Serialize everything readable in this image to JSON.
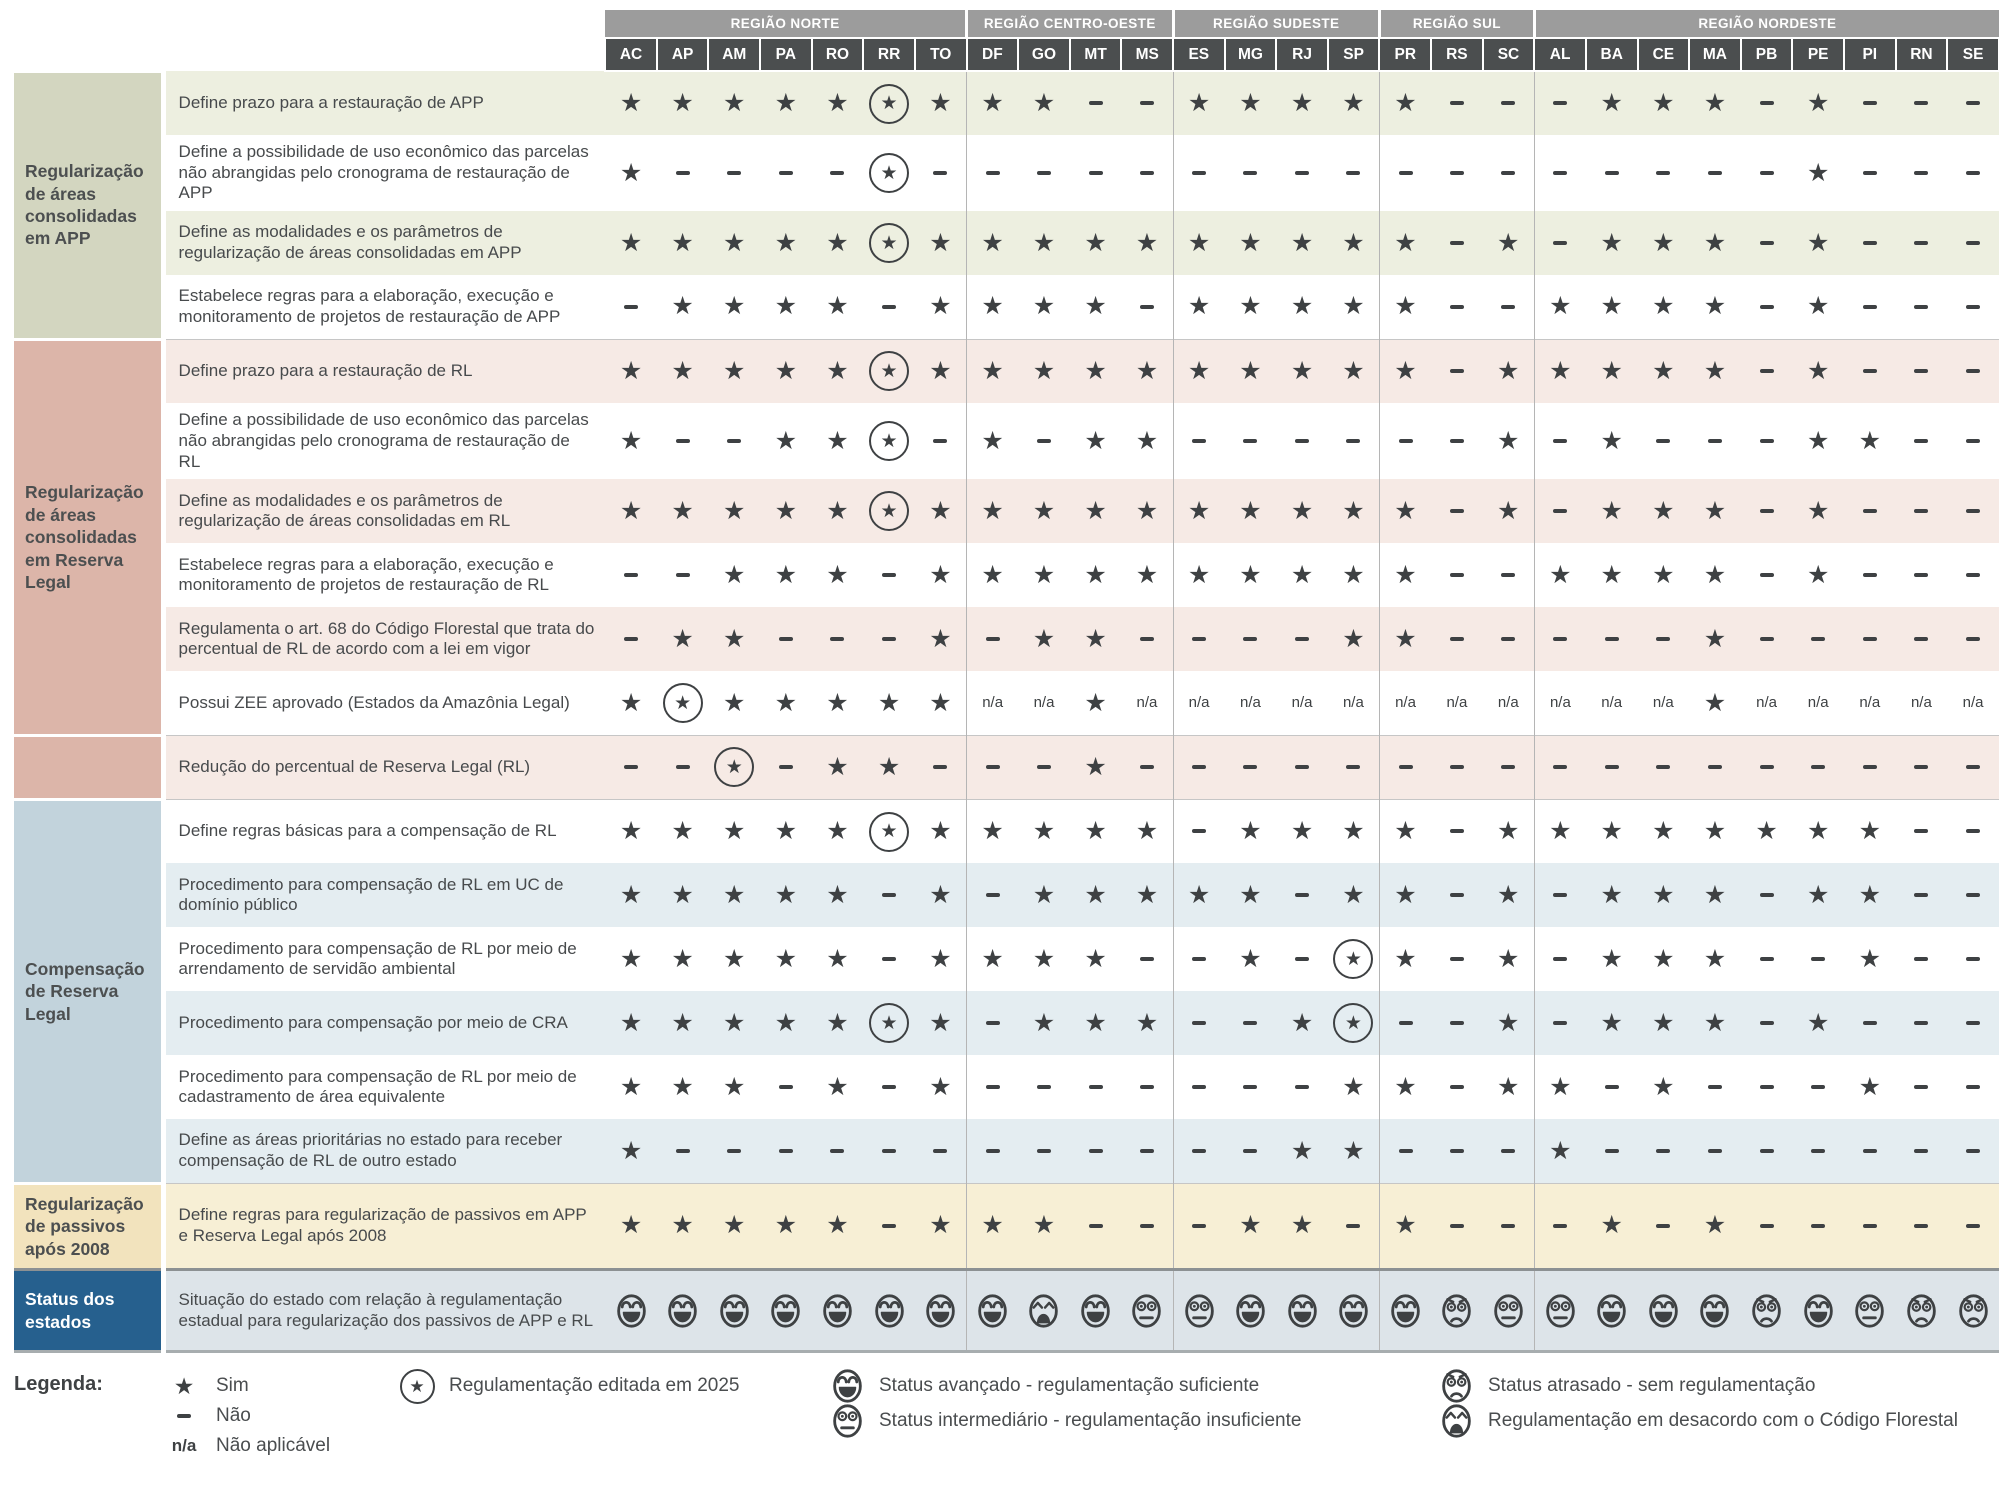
{
  "legend": {
    "title": "Legenda:",
    "items": [
      {
        "symbol": "S",
        "label": "Sim"
      },
      {
        "symbol": "N",
        "label": "Não"
      },
      {
        "symbol": "na",
        "label": "Não aplicável"
      },
      {
        "symbol": "E",
        "label": "Regulamentação editada em 2025"
      },
      {
        "symbol": "adv",
        "label": "Status avançado - regulamentação suficiente"
      },
      {
        "symbol": "int",
        "label": "Status intermediário - regulamentação insuficiente"
      },
      {
        "symbol": "atr",
        "label": "Status atrasado - sem regulamentação"
      },
      {
        "symbol": "des",
        "label": "Regulamentação em desacordo com o Código Florestal"
      }
    ]
  },
  "chart_data": {
    "type": "table",
    "symbol_meanings": {
      "S": "Sim",
      "N": "Não",
      "na": "Não aplicável",
      "E": "Regulamentação editada em 2025",
      "adv": "Status avançado - regulamentação suficiente",
      "int": "Status intermediário - regulamentação insuficiente",
      "atr": "Status atrasado - sem regulamentação",
      "des": "Regulamentação em desacordo com o Código Florestal"
    },
    "colors": {
      "region_header_bg": "#9c9c9c",
      "state_header_bg": "#4b4e4f",
      "symbol_color": "#3e4143",
      "navy": "#26608e"
    },
    "regions": [
      {
        "name": "REGIÃO NORTE",
        "states": [
          "AC",
          "AP",
          "AM",
          "PA",
          "RO",
          "RR",
          "TO"
        ]
      },
      {
        "name": "REGIÃO CENTRO-OESTE",
        "states": [
          "DF",
          "GO",
          "MT",
          "MS"
        ]
      },
      {
        "name": "REGIÃO SUDESTE",
        "states": [
          "ES",
          "MG",
          "RJ",
          "SP"
        ]
      },
      {
        "name": "REGIÃO SUL",
        "states": [
          "PR",
          "RS",
          "SC"
        ]
      },
      {
        "name": "REGIÃO NORDESTE",
        "states": [
          "AL",
          "BA",
          "CE",
          "MA",
          "PB",
          "PE",
          "PI",
          "RN",
          "SE"
        ]
      }
    ],
    "row_groups": [
      {
        "label": "Regularização de áreas consolidadas em APP",
        "label_bg": "#d3d6c0",
        "stripe": "#edefe0",
        "stripe_first": true,
        "rows": [
          {
            "label": "Define prazo para a restauração de APP",
            "values": [
              "S",
              "S",
              "S",
              "S",
              "S",
              "E",
              "S",
              "S",
              "S",
              "N",
              "N",
              "S",
              "S",
              "S",
              "S",
              "S",
              "N",
              "N",
              "N",
              "S",
              "S",
              "S",
              "N",
              "S",
              "N",
              "N",
              "N"
            ]
          },
          {
            "label": "Define a possibilidade de uso econômico das parcelas não abrangidas pelo cronograma de restauração de APP",
            "values": [
              "S",
              "N",
              "N",
              "N",
              "N",
              "E",
              "N",
              "N",
              "N",
              "N",
              "N",
              "N",
              "N",
              "N",
              "N",
              "N",
              "N",
              "N",
              "N",
              "N",
              "N",
              "N",
              "N",
              "S",
              "N",
              "N",
              "N"
            ]
          },
          {
            "label": "Define as modalidades e os parâmetros de regularização de áreas consolidadas em APP",
            "values": [
              "S",
              "S",
              "S",
              "S",
              "S",
              "E",
              "S",
              "S",
              "S",
              "S",
              "S",
              "S",
              "S",
              "S",
              "S",
              "S",
              "N",
              "S",
              "N",
              "S",
              "S",
              "S",
              "N",
              "S",
              "N",
              "N",
              "N"
            ]
          },
          {
            "label": "Estabelece regras para a elaboração, execução e monitoramento de projetos de restauração de APP",
            "values": [
              "N",
              "S",
              "S",
              "S",
              "S",
              "N",
              "S",
              "S",
              "S",
              "S",
              "N",
              "S",
              "S",
              "S",
              "S",
              "S",
              "N",
              "N",
              "S",
              "S",
              "S",
              "S",
              "N",
              "S",
              "N",
              "N",
              "N"
            ]
          }
        ]
      },
      {
        "label": "Regularização de áreas consolidadas em Reserva Legal",
        "label_bg": "#dcb5a9",
        "stripe": "#f6eae5",
        "stripe_first": true,
        "rows": [
          {
            "label": "Define prazo para a restauração de RL",
            "values": [
              "S",
              "S",
              "S",
              "S",
              "S",
              "E",
              "S",
              "S",
              "S",
              "S",
              "S",
              "S",
              "S",
              "S",
              "S",
              "S",
              "N",
              "S",
              "S",
              "S",
              "S",
              "S",
              "N",
              "S",
              "N",
              "N",
              "N"
            ]
          },
          {
            "label": "Define a possibilidade de uso econômico das parcelas não abrangidas pelo cronograma de restauração de RL",
            "values": [
              "S",
              "N",
              "N",
              "S",
              "S",
              "E",
              "N",
              "S",
              "N",
              "S",
              "S",
              "N",
              "N",
              "N",
              "N",
              "N",
              "N",
              "S",
              "N",
              "S",
              "N",
              "N",
              "N",
              "S",
              "S",
              "N",
              "N"
            ]
          },
          {
            "label": "Define as modalidades e os parâmetros de regularização de áreas consolidadas em RL",
            "values": [
              "S",
              "S",
              "S",
              "S",
              "S",
              "E",
              "S",
              "S",
              "S",
              "S",
              "S",
              "S",
              "S",
              "S",
              "S",
              "S",
              "N",
              "S",
              "N",
              "S",
              "S",
              "S",
              "N",
              "S",
              "N",
              "N",
              "N"
            ]
          },
          {
            "label": "Estabelece regras para a elaboração, execução e monitoramento de projetos de restauração de RL",
            "values": [
              "N",
              "N",
              "S",
              "S",
              "S",
              "N",
              "S",
              "S",
              "S",
              "S",
              "S",
              "S",
              "S",
              "S",
              "S",
              "S",
              "N",
              "N",
              "S",
              "S",
              "S",
              "S",
              "N",
              "S",
              "N",
              "N",
              "N"
            ]
          },
          {
            "label": "Regulamenta o art. 68 do Código Florestal que trata do percentual de RL de acordo com a lei em vigor",
            "values": [
              "N",
              "S",
              "S",
              "N",
              "N",
              "N",
              "S",
              "N",
              "S",
              "S",
              "N",
              "N",
              "N",
              "N",
              "S",
              "S",
              "N",
              "N",
              "N",
              "N",
              "N",
              "S",
              "N",
              "N",
              "N",
              "N",
              "N"
            ]
          },
          {
            "label": "Possui ZEE aprovado (Estados da Amazônia Legal)",
            "values": [
              "S",
              "E",
              "S",
              "S",
              "S",
              "S",
              "S",
              "na",
              "na",
              "S",
              "na",
              "na",
              "na",
              "na",
              "na",
              "na",
              "na",
              "na",
              "na",
              "na",
              "na",
              "S",
              "na",
              "na",
              "na",
              "na",
              "na"
            ]
          }
        ]
      },
      {
        "label": "",
        "label_bg": "#dcb5a9",
        "stripe": "#f6eae5",
        "stripe_first": true,
        "rows": [
          {
            "label": "Redução do percentual de Reserva Legal (RL)",
            "values": [
              "N",
              "N",
              "E",
              "N",
              "S",
              "S",
              "N",
              "N",
              "N",
              "S",
              "N",
              "N",
              "N",
              "N",
              "N",
              "N",
              "N",
              "N",
              "N",
              "N",
              "N",
              "N",
              "N",
              "N",
              "N",
              "N",
              "N"
            ]
          }
        ]
      },
      {
        "label": "Compensação de Reserva Legal",
        "label_bg": "#c2d3dc",
        "stripe": "#e4edf1",
        "stripe_first": false,
        "rows": [
          {
            "label": "Define regras básicas para a compensação de RL",
            "values": [
              "S",
              "S",
              "S",
              "S",
              "S",
              "E",
              "S",
              "S",
              "S",
              "S",
              "S",
              "N",
              "S",
              "S",
              "S",
              "S",
              "N",
              "S",
              "S",
              "S",
              "S",
              "S",
              "S",
              "S",
              "S",
              "N",
              "N"
            ]
          },
          {
            "label": "Procedimento para compensação de RL em UC de domínio público",
            "values": [
              "S",
              "S",
              "S",
              "S",
              "S",
              "N",
              "S",
              "N",
              "S",
              "S",
              "S",
              "S",
              "S",
              "N",
              "S",
              "S",
              "N",
              "S",
              "N",
              "S",
              "S",
              "S",
              "N",
              "S",
              "S",
              "N",
              "N"
            ]
          },
          {
            "label": "Procedimento para compensação de RL por meio de arrendamento de servidão ambiental",
            "values": [
              "S",
              "S",
              "S",
              "S",
              "S",
              "N",
              "S",
              "S",
              "S",
              "S",
              "N",
              "N",
              "S",
              "N",
              "E",
              "S",
              "N",
              "S",
              "N",
              "S",
              "S",
              "S",
              "N",
              "N",
              "S",
              "N",
              "N"
            ]
          },
          {
            "label": "Procedimento para compensação por meio de CRA",
            "values": [
              "S",
              "S",
              "S",
              "S",
              "S",
              "E",
              "S",
              "N",
              "S",
              "S",
              "S",
              "N",
              "N",
              "S",
              "E",
              "N",
              "N",
              "S",
              "N",
              "S",
              "S",
              "S",
              "N",
              "S",
              "N",
              "N",
              "N"
            ]
          },
          {
            "label": "Procedimento para compensação de RL por meio de cadastramento de área equivalente",
            "values": [
              "S",
              "S",
              "S",
              "N",
              "S",
              "N",
              "S",
              "N",
              "N",
              "N",
              "N",
              "N",
              "N",
              "N",
              "S",
              "S",
              "N",
              "S",
              "S",
              "N",
              "S",
              "N",
              "N",
              "N",
              "S",
              "N",
              "N"
            ]
          },
          {
            "label": "Define as áreas prioritárias no estado para receber compensação de RL de outro estado",
            "values": [
              "S",
              "N",
              "N",
              "N",
              "N",
              "N",
              "N",
              "N",
              "N",
              "N",
              "N",
              "N",
              "N",
              "S",
              "S",
              "N",
              "N",
              "N",
              "S",
              "N",
              "N",
              "N",
              "N",
              "N",
              "N",
              "N",
              "N"
            ]
          }
        ]
      },
      {
        "label": "Regularização de passivos após 2008",
        "label_bg": "#f2e3bd",
        "solid": "#f7efd5",
        "rows": [
          {
            "label": "Define regras para regularização de passivos em APP e Reserva Legal após 2008",
            "values": [
              "S",
              "S",
              "S",
              "S",
              "S",
              "N",
              "S",
              "S",
              "S",
              "N",
              "N",
              "N",
              "S",
              "S",
              "N",
              "S",
              "N",
              "N",
              "N",
              "S",
              "N",
              "S",
              "N",
              "N",
              "N",
              "N",
              "N"
            ]
          }
        ]
      },
      {
        "label": "Status dos estados",
        "label_bg": "#26608e",
        "label_color": "#ffffff",
        "solid": "#dde4e9",
        "status": true,
        "rows": [
          {
            "label": "Situação do estado com relação à regulamentação estadual para regularização dos passivos de APP e RL",
            "values": [
              "adv",
              "adv",
              "adv",
              "adv",
              "adv",
              "adv",
              "adv",
              "adv",
              "des",
              "adv",
              "int",
              "int",
              "adv",
              "adv",
              "adv",
              "adv",
              "atr",
              "int",
              "int",
              "adv",
              "adv",
              "adv",
              "atr",
              "adv",
              "int",
              "atr",
              "atr"
            ]
          }
        ]
      }
    ]
  }
}
